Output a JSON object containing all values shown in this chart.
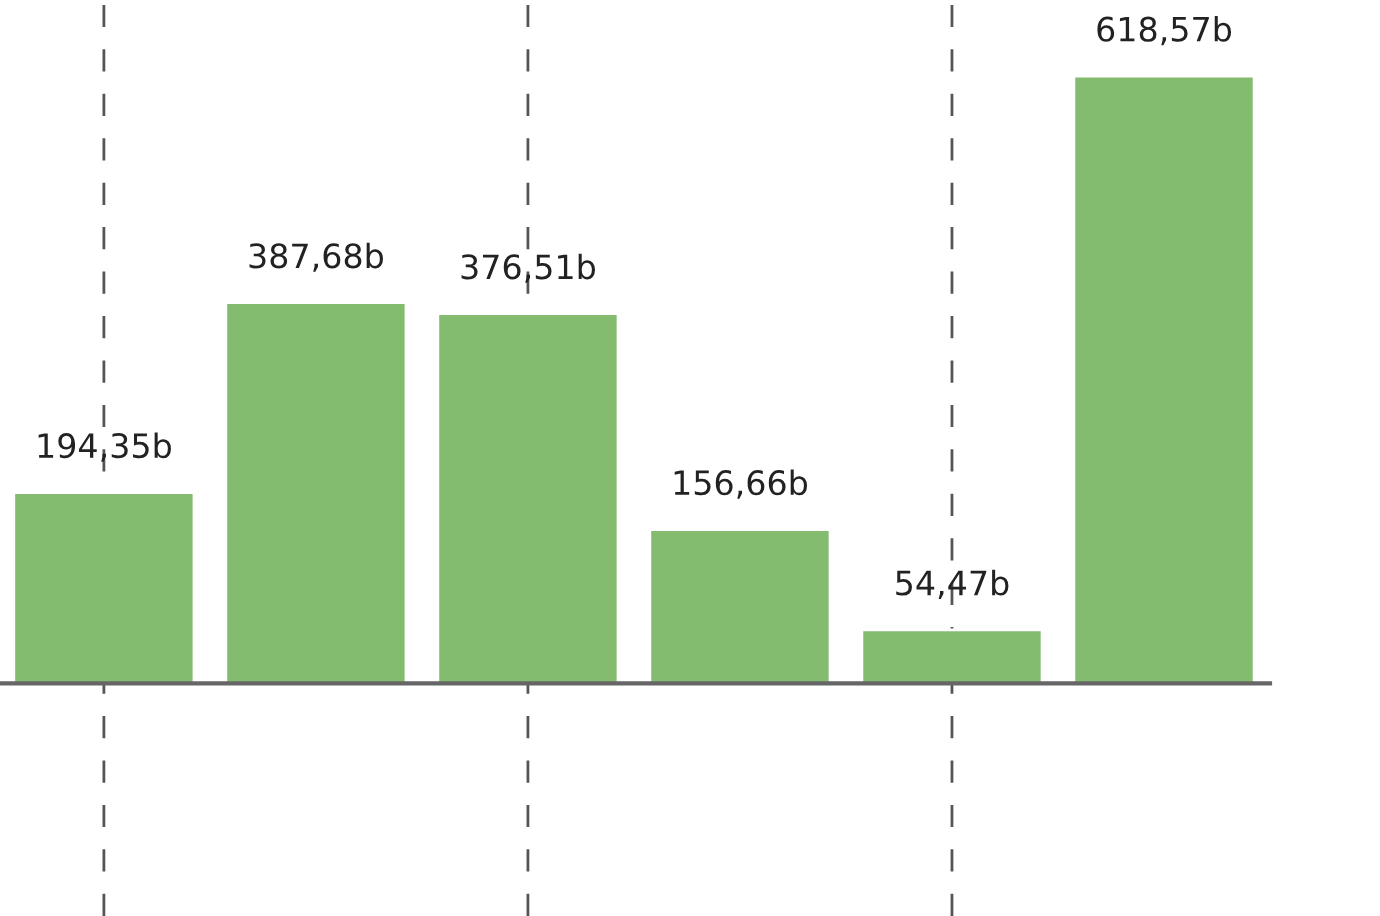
{
  "chart_data": {
    "type": "bar",
    "categories": [
      null,
      null,
      null,
      null,
      null,
      null
    ],
    "values": [
      194.35,
      387.68,
      376.51,
      156.66,
      54.47,
      618.57
    ],
    "value_labels": [
      "194,35b",
      "387,68b",
      "376,51b",
      "156,66b",
      "54,47b",
      "618,57b"
    ],
    "color": "#84bc6f",
    "ylim": [
      -237,
      696
    ],
    "tick_labels": false,
    "grid": "x"
  }
}
